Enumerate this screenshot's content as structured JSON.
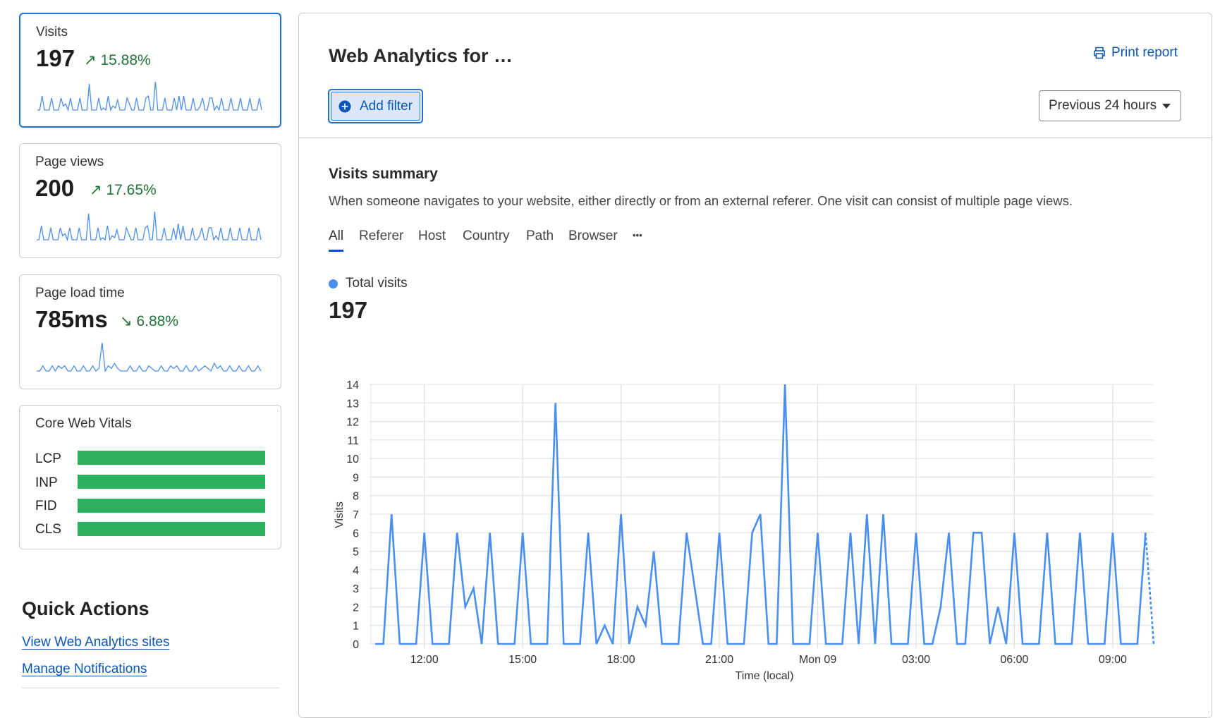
{
  "sidebar": {
    "cards": [
      {
        "label": "Visits",
        "value": "197",
        "change": "15.88%",
        "trend": "up",
        "selected": true,
        "sparkline": [
          0,
          0,
          7,
          0,
          0,
          0,
          6,
          0,
          0,
          0,
          6,
          2,
          3,
          0,
          6,
          0,
          0,
          0,
          6,
          0,
          0,
          0,
          13,
          0,
          0,
          0,
          6,
          0,
          1,
          0,
          7,
          0,
          2,
          1,
          5,
          0,
          0,
          0,
          6,
          3,
          0,
          0,
          6,
          0,
          0,
          0,
          6,
          7,
          0,
          0,
          14,
          0,
          0,
          0,
          6,
          0,
          0,
          0,
          6,
          0,
          7,
          0,
          7,
          0,
          0,
          0,
          6,
          0,
          0,
          2,
          6,
          0,
          0,
          6,
          6,
          0,
          2,
          0,
          6,
          0,
          0,
          0,
          6,
          0,
          0,
          0,
          6,
          0,
          0,
          0,
          6,
          0,
          0,
          0,
          6,
          0
        ]
      },
      {
        "label": "Page views",
        "value": "200",
        "change": "17.65%",
        "trend": "up",
        "selected": false,
        "sparkline": [
          0,
          0,
          7,
          0,
          0,
          0,
          6,
          0,
          0,
          0,
          6,
          2,
          3,
          0,
          6,
          0,
          0,
          0,
          6,
          0,
          0,
          0,
          13,
          0,
          0,
          0,
          6,
          0,
          1,
          0,
          7,
          0,
          2,
          1,
          5,
          0,
          0,
          0,
          6,
          3,
          0,
          0,
          6,
          0,
          0,
          0,
          6,
          7,
          0,
          0,
          14,
          0,
          0,
          0,
          6,
          0,
          0,
          0,
          6,
          0,
          8,
          0,
          7,
          0,
          0,
          0,
          6,
          0,
          0,
          2,
          6,
          0,
          0,
          6,
          6,
          0,
          2,
          0,
          6,
          0,
          0,
          0,
          6,
          0,
          0,
          0,
          6,
          0,
          0,
          0,
          6,
          0,
          0,
          0,
          6,
          0
        ]
      },
      {
        "label": "Page load time",
        "value": "785ms",
        "change": "6.88%",
        "trend": "down",
        "selected": false,
        "sparkline": [
          0,
          0,
          2,
          0,
          0,
          2,
          0,
          2,
          1,
          2,
          0,
          0,
          2,
          0,
          0,
          2,
          0,
          0,
          2,
          0,
          1,
          11,
          0,
          2,
          1,
          3,
          1,
          0,
          0,
          0,
          2,
          0,
          0,
          2,
          0,
          0,
          2,
          1,
          0,
          0,
          2,
          0,
          0,
          2,
          1,
          2,
          0,
          0,
          2,
          0,
          0,
          2,
          0,
          1,
          2,
          1,
          0,
          3,
          1,
          2,
          0,
          0,
          2,
          0,
          0,
          2,
          0,
          0,
          2,
          0,
          0,
          2,
          0
        ]
      }
    ],
    "core_web_vitals": {
      "title": "Core Web Vitals",
      "metrics": [
        {
          "label": "LCP",
          "good_fraction": 1.0
        },
        {
          "label": "INP",
          "good_fraction": 1.0
        },
        {
          "label": "FID",
          "good_fraction": 1.0
        },
        {
          "label": "CLS",
          "good_fraction": 1.0
        }
      ]
    },
    "quick_actions": {
      "title": "Quick Actions",
      "links": [
        "View Web Analytics sites",
        "Manage Notifications"
      ]
    }
  },
  "header": {
    "title": "Web Analytics for …",
    "print_label": "Print report",
    "add_filter_label": "Add filter",
    "time_range": "Previous 24 hours"
  },
  "summary": {
    "title": "Visits summary",
    "description": "When someone navigates to your website, either directly or from an external referer. One visit can consist of multiple page views.",
    "tabs": [
      "All",
      "Referer",
      "Host",
      "Country",
      "Path",
      "Browser"
    ],
    "active_tab": "All",
    "more_label": "•••",
    "legend_label": "Total visits",
    "total": "197"
  },
  "colors": {
    "accent": "#1f6fd9",
    "series": "#4a8ff0",
    "positive": "#22733a",
    "good": "#2db15f",
    "link": "#0b55b5"
  },
  "chart_data": {
    "type": "line",
    "xlabel": "Time (local)",
    "ylabel": "Visits",
    "ylim": [
      0,
      14
    ],
    "yticks": [
      0,
      1,
      2,
      3,
      4,
      5,
      6,
      7,
      8,
      9,
      10,
      11,
      12,
      13,
      14
    ],
    "grid": true,
    "xticks": [
      {
        "label": "12:00",
        "at": "12:00"
      },
      {
        "label": "15:00",
        "at": "15:00"
      },
      {
        "label": "18:00",
        "at": "18:00"
      },
      {
        "label": "21:00",
        "at": "21:00"
      },
      {
        "label": "Mon 09",
        "at": "00:00"
      },
      {
        "label": "03:00",
        "at": "03:00"
      },
      {
        "label": "06:00",
        "at": "06:00"
      },
      {
        "label": "09:00",
        "at": "09:00"
      }
    ],
    "x": [
      "10:30",
      "10:45",
      "11:00",
      "11:15",
      "11:30",
      "11:45",
      "12:00",
      "12:15",
      "12:30",
      "12:45",
      "13:00",
      "13:15",
      "13:30",
      "13:45",
      "14:00",
      "14:15",
      "14:30",
      "14:45",
      "15:00",
      "15:15",
      "15:30",
      "15:45",
      "16:00",
      "16:15",
      "16:30",
      "16:45",
      "17:00",
      "17:15",
      "17:30",
      "17:45",
      "18:00",
      "18:15",
      "18:30",
      "18:45",
      "19:00",
      "19:15",
      "19:30",
      "19:45",
      "20:00",
      "20:15",
      "20:30",
      "20:45",
      "21:00",
      "21:15",
      "21:30",
      "21:45",
      "22:00",
      "22:15",
      "22:30",
      "22:45",
      "23:00",
      "23:15",
      "23:30",
      "23:45",
      "00:00",
      "00:15",
      "00:30",
      "00:45",
      "01:00",
      "01:15",
      "01:30",
      "01:45",
      "02:00",
      "02:15",
      "02:30",
      "02:45",
      "03:00",
      "03:15",
      "03:30",
      "03:45",
      "04:00",
      "04:15",
      "04:30",
      "04:45",
      "05:00",
      "05:15",
      "05:30",
      "05:45",
      "06:00",
      "06:15",
      "06:30",
      "06:45",
      "07:00",
      "07:15",
      "07:30",
      "07:45",
      "08:00",
      "08:15",
      "08:30",
      "08:45",
      "09:00",
      "09:15",
      "09:30",
      "09:45",
      "10:00",
      "10:15"
    ],
    "series": [
      {
        "name": "Total visits",
        "values": [
          0,
          0,
          7,
          0,
          0,
          0,
          6,
          0,
          0,
          0,
          6,
          2,
          3,
          0,
          6,
          0,
          0,
          0,
          6,
          0,
          0,
          0,
          13,
          0,
          0,
          0,
          6,
          0,
          1,
          0,
          7,
          0,
          2,
          1,
          5,
          0,
          0,
          0,
          6,
          3,
          0,
          0,
          6,
          0,
          0,
          0,
          6,
          7,
          0,
          0,
          14,
          0,
          0,
          0,
          6,
          0,
          0,
          0,
          6,
          0,
          7,
          0,
          7,
          0,
          0,
          0,
          6,
          0,
          0,
          2,
          6,
          0,
          0,
          6,
          6,
          0,
          2,
          0,
          6,
          0,
          0,
          0,
          6,
          0,
          0,
          0,
          6,
          0,
          0,
          0,
          6,
          0,
          0,
          0,
          6,
          0
        ],
        "last_segment_dashed": true
      }
    ]
  }
}
